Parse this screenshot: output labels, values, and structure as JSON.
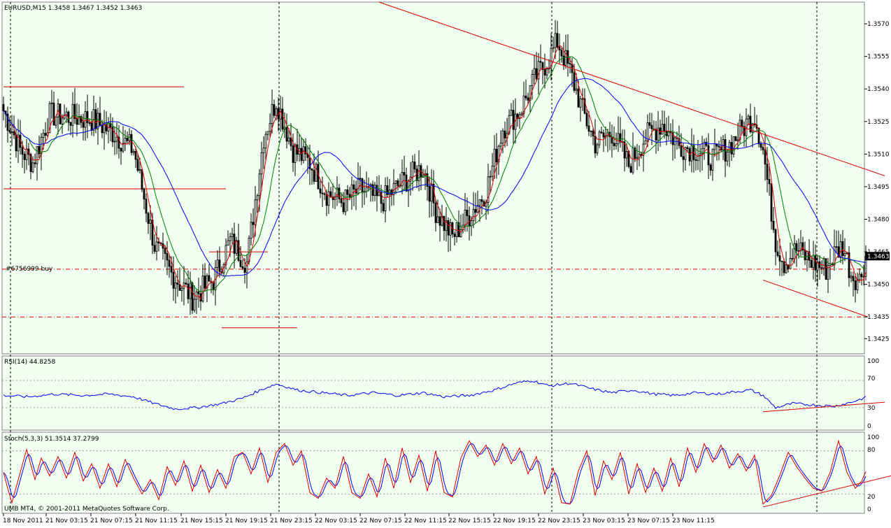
{
  "window": {
    "symbol_header": "EURUSD,M15  1.3458 1.3467 1.3452 1.3463",
    "copyright": "UMB MT4, © 2001-2011 MetaQuotes Software Corp."
  },
  "colors": {
    "panel_bg": "#f0fff0",
    "bull_candle": "#1a1a1a",
    "bear_candle": "#1a1a1a",
    "ma_fast": "#e00000",
    "ma_mid": "#008000",
    "ma_slow": "#0000ff",
    "trendline": "#e00000",
    "rsi_line": "#0000ff",
    "stoch_main": "#0000ff",
    "stoch_signal": "#e00000",
    "grid": "#000000"
  },
  "price_panel": {
    "order_label": "#6756999 buy",
    "order_level": 1.3457,
    "lower_level": 1.3435,
    "current_price_label": "1.3463",
    "current_price": 1.3463
  },
  "rsi_panel": {
    "label": "RSI(14) 44.8258",
    "ticks": [
      "100",
      "70",
      "30",
      "0"
    ]
  },
  "stoch_panel": {
    "label": "Stoch(5,3,3) 51.3514 37.2799",
    "ticks": [
      "100",
      "80",
      "20",
      "0"
    ]
  },
  "chart_data": {
    "type": "line",
    "instrument": "EURUSD",
    "timeframe": "M15",
    "ohlc_last": {
      "open": 1.3458,
      "high": 1.3467,
      "low": 1.3452,
      "close": 1.3463
    },
    "x_labels": [
      "18 Nov 2011",
      "21 Nov 03:15",
      "21 Nov 07:15",
      "21 Nov 11:15",
      "21 Nov 15:15",
      "21 Nov 19:15",
      "21 Nov 23:15",
      "22 Nov 03:15",
      "22 Nov 07:15",
      "22 Nov 11:15",
      "22 Nov 15:15",
      "22 Nov 19:15",
      "22 Nov 23:15",
      "23 Nov 03:15",
      "23 Nov 07:15",
      "23 Nov 11:15"
    ],
    "y_ticks": [
      "1.3570",
      "1.3555",
      "1.3540",
      "1.3525",
      "1.3510",
      "1.3495",
      "1.3480",
      "1.3465",
      "1.3450",
      "1.3435",
      "1.3425"
    ],
    "y_tick_values": [
      1.357,
      1.3555,
      1.354,
      1.3525,
      1.351,
      1.3495,
      1.348,
      1.3465,
      1.345,
      1.3435,
      1.3425
    ],
    "ylim": [
      1.3418,
      1.358
    ],
    "session_dividers": [
      "21 Nov",
      "22 Nov",
      "23 Nov",
      "24 Nov"
    ],
    "close_anchors": [
      [
        0,
        1.353
      ],
      [
        8,
        1.3512
      ],
      [
        14,
        1.3506
      ],
      [
        22,
        1.3528
      ],
      [
        34,
        1.3527
      ],
      [
        42,
        1.3526
      ],
      [
        52,
        1.352
      ],
      [
        62,
        1.3512
      ],
      [
        72,
        1.3468
      ],
      [
        80,
        1.3455
      ],
      [
        90,
        1.3444
      ],
      [
        100,
        1.3452
      ],
      [
        108,
        1.347
      ],
      [
        116,
        1.346
      ],
      [
        124,
        1.3518
      ],
      [
        130,
        1.3535
      ],
      [
        138,
        1.3512
      ],
      [
        146,
        1.3506
      ],
      [
        154,
        1.3492
      ],
      [
        162,
        1.3488
      ],
      [
        170,
        1.3494
      ],
      [
        180,
        1.3488
      ],
      [
        190,
        1.3497
      ],
      [
        200,
        1.3504
      ],
      [
        206,
        1.3484
      ],
      [
        214,
        1.3472
      ],
      [
        222,
        1.3482
      ],
      [
        230,
        1.3493
      ],
      [
        238,
        1.3522
      ],
      [
        246,
        1.353
      ],
      [
        254,
        1.3546
      ],
      [
        260,
        1.3554
      ],
      [
        264,
        1.3562
      ],
      [
        270,
        1.3548
      ],
      [
        276,
        1.353
      ],
      [
        282,
        1.3515
      ],
      [
        290,
        1.352
      ],
      [
        298,
        1.3505
      ],
      [
        306,
        1.3518
      ],
      [
        314,
        1.3524
      ],
      [
        322,
        1.3514
      ],
      [
        330,
        1.3512
      ],
      [
        338,
        1.3508
      ],
      [
        346,
        1.3514
      ],
      [
        354,
        1.3524
      ],
      [
        358,
        1.3528
      ],
      [
        362,
        1.3512
      ],
      [
        368,
        1.347
      ],
      [
        372,
        1.346
      ],
      [
        378,
        1.3466
      ],
      [
        386,
        1.346
      ],
      [
        392,
        1.3457
      ],
      [
        396,
        1.3464
      ],
      [
        400,
        1.3468
      ],
      [
        404,
        1.3455
      ],
      [
        408,
        1.3452
      ],
      [
        411,
        1.3463
      ]
    ],
    "trendlines": [
      {
        "from": [
          179,
          1.358
        ],
        "to": [
          420,
          1.35
        ]
      },
      {
        "from": [
          362,
          1.3452
        ],
        "to": [
          412,
          1.3435
        ]
      }
    ],
    "horizontal_segments": [
      {
        "from_bar": 0,
        "to_bar": 86,
        "price": 1.3541
      },
      {
        "from_bar": 0,
        "to_bar": 106,
        "price": 1.3494
      },
      {
        "from_bar": 98,
        "to_bar": 126,
        "price": 1.3465
      },
      {
        "from_bar": 104,
        "to_bar": 140,
        "price": 1.343
      }
    ],
    "rsi_anchors": [
      [
        0,
        48
      ],
      [
        12,
        46
      ],
      [
        24,
        50
      ],
      [
        38,
        48
      ],
      [
        50,
        50
      ],
      [
        62,
        46
      ],
      [
        72,
        36
      ],
      [
        82,
        28
      ],
      [
        92,
        30
      ],
      [
        104,
        36
      ],
      [
        114,
        44
      ],
      [
        124,
        58
      ],
      [
        130,
        65
      ],
      [
        140,
        56
      ],
      [
        152,
        52
      ],
      [
        164,
        48
      ],
      [
        176,
        52
      ],
      [
        188,
        48
      ],
      [
        200,
        52
      ],
      [
        210,
        46
      ],
      [
        222,
        48
      ],
      [
        234,
        56
      ],
      [
        244,
        66
      ],
      [
        252,
        70
      ],
      [
        260,
        62
      ],
      [
        270,
        66
      ],
      [
        280,
        58
      ],
      [
        290,
        52
      ],
      [
        300,
        56
      ],
      [
        310,
        50
      ],
      [
        320,
        48
      ],
      [
        330,
        52
      ],
      [
        340,
        50
      ],
      [
        350,
        54
      ],
      [
        356,
        56
      ],
      [
        362,
        48
      ],
      [
        368,
        30
      ],
      [
        376,
        36
      ],
      [
        386,
        34
      ],
      [
        396,
        32
      ],
      [
        404,
        38
      ],
      [
        411,
        45
      ]
    ],
    "stoch_anchors": [
      [
        0,
        50
      ],
      [
        2,
        28
      ],
      [
        4,
        8
      ],
      [
        8,
        50
      ],
      [
        11,
        82
      ],
      [
        15,
        40
      ],
      [
        18,
        70
      ],
      [
        22,
        45
      ],
      [
        26,
        72
      ],
      [
        30,
        42
      ],
      [
        34,
        78
      ],
      [
        38,
        38
      ],
      [
        42,
        62
      ],
      [
        46,
        28
      ],
      [
        50,
        62
      ],
      [
        54,
        30
      ],
      [
        58,
        68
      ],
      [
        62,
        42
      ],
      [
        66,
        20
      ],
      [
        70,
        40
      ],
      [
        74,
        12
      ],
      [
        78,
        58
      ],
      [
        82,
        32
      ],
      [
        86,
        66
      ],
      [
        90,
        24
      ],
      [
        94,
        60
      ],
      [
        98,
        22
      ],
      [
        102,
        54
      ],
      [
        106,
        28
      ],
      [
        110,
        72
      ],
      [
        114,
        78
      ],
      [
        118,
        48
      ],
      [
        122,
        84
      ],
      [
        126,
        36
      ],
      [
        130,
        78
      ],
      [
        134,
        90
      ],
      [
        138,
        60
      ],
      [
        142,
        80
      ],
      [
        146,
        22
      ],
      [
        150,
        14
      ],
      [
        154,
        42
      ],
      [
        158,
        28
      ],
      [
        162,
        72
      ],
      [
        166,
        22
      ],
      [
        170,
        14
      ],
      [
        174,
        48
      ],
      [
        178,
        16
      ],
      [
        182,
        70
      ],
      [
        186,
        28
      ],
      [
        190,
        84
      ],
      [
        194,
        36
      ],
      [
        198,
        74
      ],
      [
        202,
        24
      ],
      [
        206,
        80
      ],
      [
        210,
        22
      ],
      [
        214,
        16
      ],
      [
        218,
        70
      ],
      [
        222,
        94
      ],
      [
        226,
        72
      ],
      [
        230,
        88
      ],
      [
        234,
        60
      ],
      [
        238,
        90
      ],
      [
        242,
        62
      ],
      [
        246,
        84
      ],
      [
        250,
        48
      ],
      [
        254,
        72
      ],
      [
        258,
        20
      ],
      [
        262,
        56
      ],
      [
        266,
        8
      ],
      [
        270,
        6
      ],
      [
        274,
        52
      ],
      [
        278,
        80
      ],
      [
        282,
        18
      ],
      [
        286,
        66
      ],
      [
        290,
        40
      ],
      [
        294,
        78
      ],
      [
        298,
        20
      ],
      [
        302,
        62
      ],
      [
        306,
        22
      ],
      [
        310,
        56
      ],
      [
        314,
        24
      ],
      [
        318,
        70
      ],
      [
        322,
        30
      ],
      [
        326,
        84
      ],
      [
        330,
        50
      ],
      [
        334,
        90
      ],
      [
        338,
        64
      ],
      [
        342,
        88
      ],
      [
        346,
        56
      ],
      [
        350,
        76
      ],
      [
        354,
        52
      ],
      [
        358,
        74
      ],
      [
        362,
        6
      ],
      [
        366,
        18
      ],
      [
        370,
        46
      ],
      [
        374,
        78
      ],
      [
        378,
        58
      ],
      [
        382,
        42
      ],
      [
        386,
        28
      ],
      [
        390,
        24
      ],
      [
        394,
        50
      ],
      [
        398,
        94
      ],
      [
        402,
        50
      ],
      [
        406,
        28
      ],
      [
        409,
        38
      ],
      [
        411,
        51
      ]
    ],
    "rsi_trendline": {
      "from": [
        362,
        24
      ],
      "to": [
        420,
        38
      ]
    },
    "stoch_trendline": {
      "from": [
        362,
        2
      ],
      "to": [
        424,
        46
      ]
    }
  }
}
